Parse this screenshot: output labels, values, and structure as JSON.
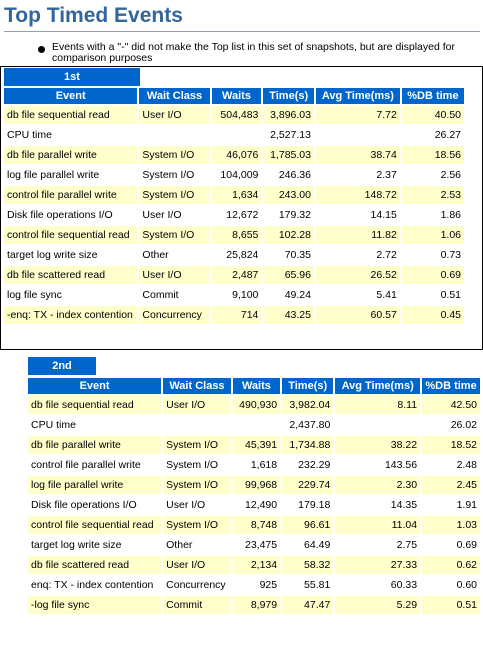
{
  "title": "Top Timed Events",
  "note": "Events with a \"-\" did not make the Top list in this set of snapshots, but are displayed for comparison purposes",
  "columns": [
    "Event",
    "Wait Class",
    "Waits",
    "Time(s)",
    "Avg Time(ms)",
    "%DB time"
  ],
  "first": {
    "label": "1st",
    "rows": [
      [
        "db file sequential read",
        "User I/O",
        "504,483",
        "3,896.03",
        "7.72",
        "40.50"
      ],
      [
        "CPU time",
        "",
        "",
        "2,527.13",
        "",
        "26.27"
      ],
      [
        "db file parallel write",
        "System I/O",
        "46,076",
        "1,785.03",
        "38.74",
        "18.56"
      ],
      [
        "log file parallel write",
        "System I/O",
        "104,009",
        "246.36",
        "2.37",
        "2.56"
      ],
      [
        "control file parallel write",
        "System I/O",
        "1,634",
        "243.00",
        "148.72",
        "2.53"
      ],
      [
        "Disk file operations I/O",
        "User I/O",
        "12,672",
        "179.32",
        "14.15",
        "1.86"
      ],
      [
        "control file sequential read",
        "System I/O",
        "8,655",
        "102.28",
        "11.82",
        "1.06"
      ],
      [
        "target log write size",
        "Other",
        "25,824",
        "70.35",
        "2.72",
        "0.73"
      ],
      [
        "db file scattered read",
        "User I/O",
        "2,487",
        "65.96",
        "26.52",
        "0.69"
      ],
      [
        "log file sync",
        "Commit",
        "9,100",
        "49.24",
        "5.41",
        "0.51"
      ],
      [
        "-enq: TX - index contention",
        "Concurrency",
        "714",
        "43.25",
        "60.57",
        "0.45"
      ]
    ]
  },
  "second": {
    "label": "2nd",
    "rows": [
      [
        "db file sequential read",
        "User I/O",
        "490,930",
        "3,982.04",
        "8.11",
        "42.50"
      ],
      [
        "CPU time",
        "",
        "",
        "2,437.80",
        "",
        "26.02"
      ],
      [
        "db file parallel write",
        "System I/O",
        "45,391",
        "1,734.88",
        "38.22",
        "18.52"
      ],
      [
        "control file parallel write",
        "System I/O",
        "1,618",
        "232.29",
        "143.56",
        "2.48"
      ],
      [
        "log file parallel write",
        "System I/O",
        "99,968",
        "229.74",
        "2.30",
        "2.45"
      ],
      [
        "Disk file operations I/O",
        "User I/O",
        "12,490",
        "179.18",
        "14.35",
        "1.91"
      ],
      [
        "control file sequential read",
        "System I/O",
        "8,748",
        "96.61",
        "11.04",
        "1.03"
      ],
      [
        "target log write size",
        "Other",
        "23,475",
        "64.49",
        "2.75",
        "0.69"
      ],
      [
        "db file scattered read",
        "User I/O",
        "2,134",
        "58.32",
        "27.33",
        "0.62"
      ],
      [
        "enq: TX - index contention",
        "Concurrency",
        "925",
        "55.81",
        "60.33",
        "0.60"
      ],
      [
        "-log file sync",
        "Commit",
        "8,979",
        "47.47",
        "5.29",
        "0.51"
      ]
    ]
  }
}
